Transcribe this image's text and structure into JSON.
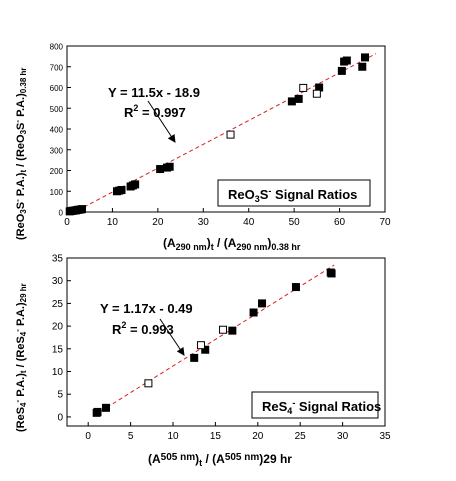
{
  "chart_data": [
    {
      "type": "scatter",
      "title": "",
      "xlabel": "(A290 nm)t / (A290 nm)0.38 hr",
      "ylabel": "(ReO3S⁻ P.A.)t / (ReO3S⁻ P.A.)0.38 hr",
      "xlim": [
        0,
        70
      ],
      "ylim": [
        0,
        800
      ],
      "xticks": [
        "0",
        "10",
        "20",
        "30",
        "40",
        "50",
        "60",
        "70"
      ],
      "yticks": [
        "0",
        "100",
        "200",
        "300",
        "400",
        "500",
        "600",
        "700",
        "800"
      ],
      "grid": false,
      "legend_box": "ReO3S⁻ Signal Ratios",
      "legend_placement": "lower-right",
      "annotations": {
        "equation": "Y = 11.5x - 18.9",
        "r2": "0.997"
      },
      "fit": {
        "slope": 11.5,
        "intercept": -18.9,
        "x_range": [
          1,
          68
        ]
      },
      "series": [
        {
          "marker": "filled-square",
          "points": [
            [
              0.6,
              3
            ],
            [
              1,
              5
            ],
            [
              1.3,
              6
            ],
            [
              1.6,
              7
            ],
            [
              2,
              8
            ],
            [
              2.3,
              10
            ],
            [
              2.6,
              11
            ],
            [
              3,
              12
            ],
            [
              3.3,
              14
            ],
            [
              11,
              100
            ],
            [
              11.5,
              103
            ],
            [
              12,
              106
            ],
            [
              14,
              123
            ],
            [
              14.5,
              128
            ],
            [
              15,
              133
            ],
            [
              20.5,
              207
            ],
            [
              22,
              214
            ],
            [
              22.6,
              218
            ],
            [
              49.5,
              533
            ],
            [
              51,
              545
            ],
            [
              55.5,
              600
            ],
            [
              60.5,
              680
            ],
            [
              61,
              725
            ],
            [
              61.6,
              730
            ],
            [
              65,
              700
            ],
            [
              65.6,
              745
            ]
          ]
        },
        {
          "marker": "open-square",
          "points": [
            [
              36,
              373
            ],
            [
              52,
              598
            ],
            [
              55,
              570
            ]
          ]
        }
      ]
    },
    {
      "type": "scatter",
      "title": "",
      "xlabel": "(A505 nm)t / (A505 nm)29 hr",
      "ylabel": "(ReS4⁻ P.A.)t / (ReS4⁻ P.A.)29 hr",
      "xlim": [
        -2.5,
        35
      ],
      "ylim": [
        -2,
        35
      ],
      "xticks": [
        "0",
        "5",
        "10",
        "15",
        "20",
        "25",
        "30",
        "35"
      ],
      "yticks": [
        "0",
        "5",
        "10",
        "15",
        "20",
        "25",
        "30",
        "35"
      ],
      "grid": false,
      "legend_box": "ReS4⁻ Signal Ratios",
      "legend_placement": "lower-right",
      "annotations": {
        "equation": "Y = 1.17x - 0.49",
        "r2": "0.993"
      },
      "fit": {
        "slope": 1.17,
        "intercept": -0.49,
        "x_range": [
          0.8,
          29
        ]
      },
      "series": [
        {
          "marker": "filled-square",
          "points": [
            [
              1,
              0.9
            ],
            [
              1.1,
              1.1
            ],
            [
              2.1,
              2
            ],
            [
              12.5,
              13
            ],
            [
              13.8,
              14.8
            ],
            [
              17,
              19
            ],
            [
              19.5,
              23
            ],
            [
              20.5,
              25
            ],
            [
              24.5,
              28.6
            ],
            [
              28.6,
              31.8
            ],
            [
              28.7,
              31.6
            ]
          ]
        },
        {
          "marker": "open-square",
          "points": [
            [
              7.1,
              7.4
            ],
            [
              13.3,
              15.8
            ],
            [
              15.9,
              19.2
            ]
          ]
        }
      ]
    }
  ]
}
